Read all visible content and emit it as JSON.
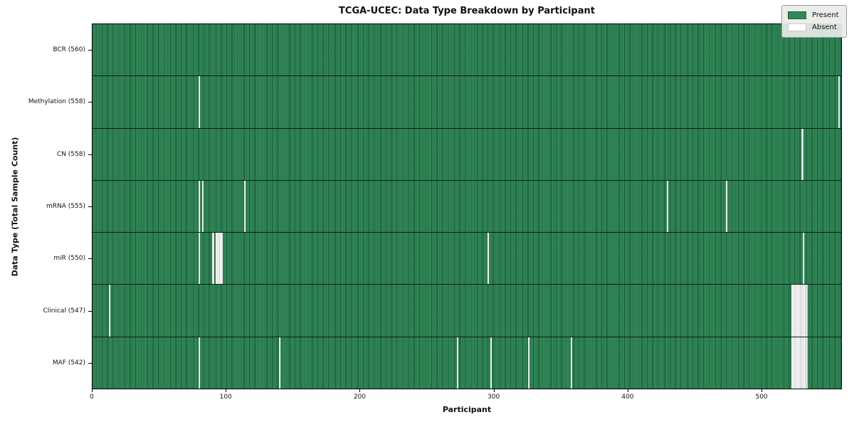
{
  "chart_data": {
    "type": "heatmap",
    "title": "TCGA-UCEC: Data Type Breakdown by Participant",
    "xlabel": "Participant",
    "ylabel": "Data Type (Total Sample Count)",
    "n_participants": 560,
    "xlim": [
      0,
      560
    ],
    "x_ticks": [
      0,
      100,
      200,
      300,
      400,
      500
    ],
    "grid": false,
    "legend_position": "upper right",
    "colors": {
      "present": "#2e8b57",
      "absent": "#ffffff",
      "cell_edge_dark": "#0a2d18",
      "row_divider": "#000000",
      "legend_bg": "#e8ece8"
    },
    "legend": {
      "items": [
        {
          "label": "Present",
          "color": "#2e8b57"
        },
        {
          "label": "Absent",
          "color": "#ffffff"
        }
      ]
    },
    "rows": [
      {
        "name": "BCR",
        "label": "BCR (560)",
        "total": 560,
        "absent_participants": []
      },
      {
        "name": "Methylation",
        "label": "Methylation (558)",
        "total": 558,
        "absent_participants": [
          79,
          557
        ]
      },
      {
        "name": "CN",
        "label": "CN (558)",
        "total": 558,
        "absent_participants": [
          529,
          530
        ]
      },
      {
        "name": "mRNA",
        "label": "mRNA (555)",
        "total": 555,
        "absent_participants": [
          79,
          82,
          113,
          429,
          473
        ]
      },
      {
        "name": "miR",
        "label": "miR (550)",
        "total": 550,
        "absent_participants": [
          79,
          89,
          90,
          92,
          93,
          94,
          95,
          96,
          295,
          530
        ]
      },
      {
        "name": "Clinical",
        "label": "Clinical (547)",
        "total": 547,
        "absent_participants": [
          12,
          522,
          523,
          524,
          525,
          526,
          527,
          528,
          529,
          530,
          531,
          532,
          533
        ]
      },
      {
        "name": "MAF",
        "label": "MAF (542)",
        "total": 542,
        "absent_participants": [
          79,
          139,
          272,
          297,
          325,
          357,
          522,
          523,
          524,
          525,
          526,
          527,
          528,
          529,
          530,
          531,
          532,
          533
        ]
      }
    ]
  }
}
